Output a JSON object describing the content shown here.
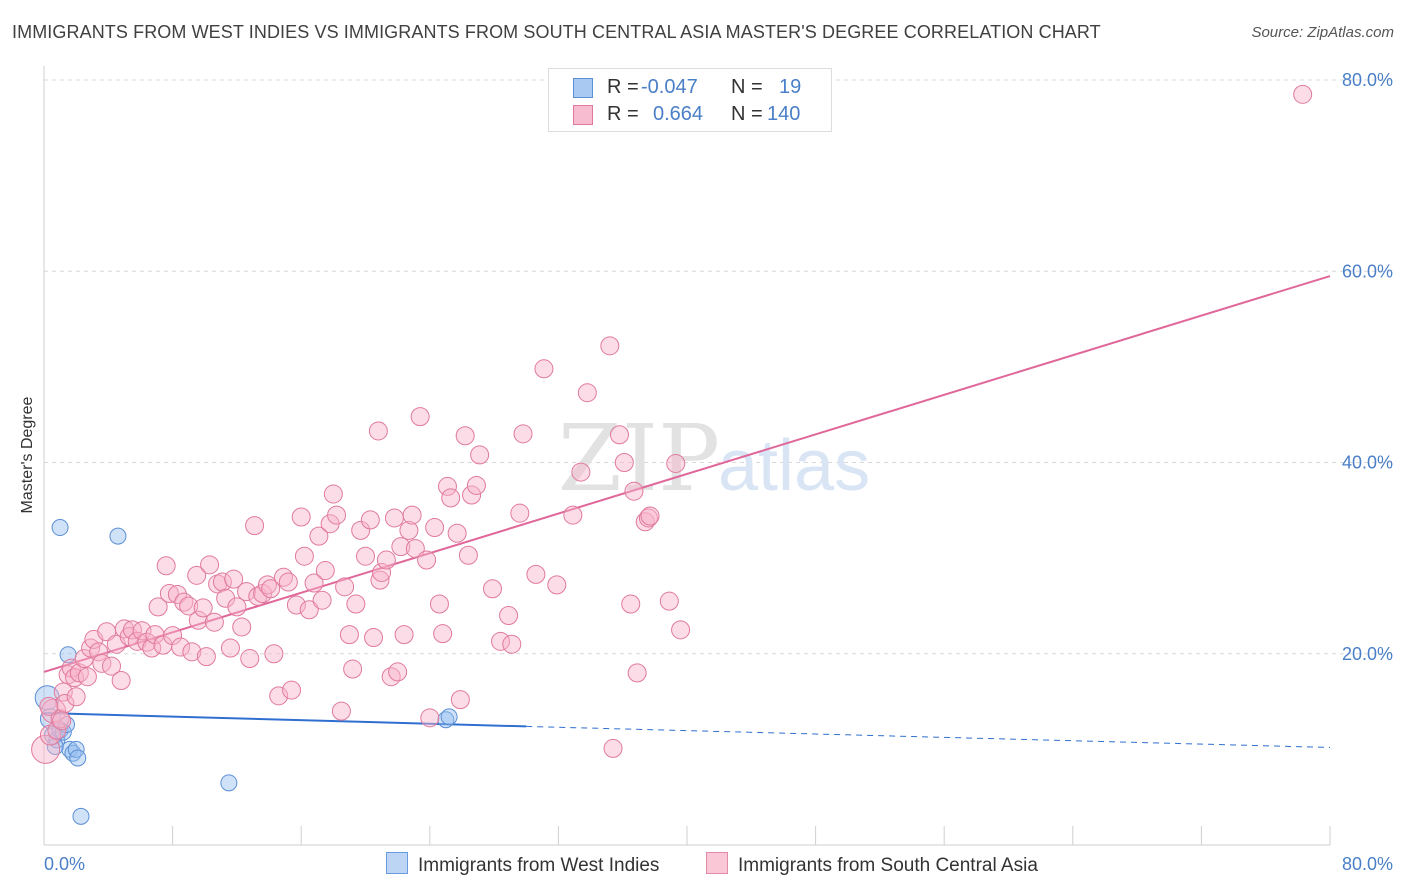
{
  "title": "IMMIGRANTS FROM WEST INDIES VS IMMIGRANTS FROM SOUTH CENTRAL ASIA MASTER'S DEGREE CORRELATION CHART",
  "source": "Source: ZipAtlas.com",
  "watermark": {
    "zip": "ZIP",
    "atlas": "atlas"
  },
  "legend": {
    "r_label": "R =",
    "n_label": "N =",
    "rows": [
      {
        "r": "-0.047",
        "n": "19",
        "color": "#a9c8f2",
        "border": "#5b8fd6"
      },
      {
        "r": "0.664",
        "n": "140",
        "color": "#f8bcd0",
        "border": "#e07a9c"
      }
    ]
  },
  "bottom_legend": [
    {
      "label": "Immigrants from West Indies",
      "color": "#bcd5f5",
      "border": "#6a9ae0"
    },
    {
      "label": "Immigrants from South Central Asia",
      "color": "#f9c7d6",
      "border": "#e48aa8"
    }
  ],
  "chart_data": {
    "type": "scatter",
    "title": "IMMIGRANTS FROM WEST INDIES VS IMMIGRANTS FROM SOUTH CENTRAL ASIA MASTER'S DEGREE CORRELATION CHART",
    "xlabel": "",
    "ylabel": "Master's Degree",
    "xlim": [
      0,
      80
    ],
    "ylim": [
      0,
      80
    ],
    "x_tick_labels": [
      "0.0%",
      "80.0%"
    ],
    "y_ticks": [
      20,
      40,
      60,
      80
    ],
    "y_tick_labels": [
      "20.0%",
      "40.0%",
      "60.0%",
      "80.0%"
    ],
    "grid": true,
    "series": [
      {
        "name": "Immigrants from West Indies",
        "color": "#5b8fd6",
        "fill": "rgba(150,190,240,0.45)",
        "trend": {
          "x0": 0,
          "y0": 13.8,
          "x1": 30,
          "y1": 12.4,
          "dashed_to_x": 80,
          "dashed_to_y": 10.2,
          "color": "#2f6fcf"
        },
        "points": [
          [
            0.2,
            15.4,
            12
          ],
          [
            0.4,
            13.2,
            10
          ],
          [
            0.6,
            11.5,
            9
          ],
          [
            0.8,
            11.0,
            8
          ],
          [
            1.0,
            12.0,
            8
          ],
          [
            1.0,
            33.2,
            8
          ],
          [
            1.2,
            11.8,
            8
          ],
          [
            1.4,
            12.6,
            8
          ],
          [
            1.5,
            19.9,
            8
          ],
          [
            1.6,
            10.0,
            8
          ],
          [
            1.8,
            9.6,
            8
          ],
          [
            2.0,
            10.0,
            8
          ],
          [
            2.1,
            9.1,
            8
          ],
          [
            2.3,
            3.0,
            8
          ],
          [
            4.6,
            32.3,
            8
          ],
          [
            11.5,
            6.5,
            8
          ],
          [
            25.0,
            13.1,
            8
          ],
          [
            25.2,
            13.4,
            8
          ],
          [
            0.7,
            10.3,
            8
          ]
        ]
      },
      {
        "name": "Immigrants from South Central Asia",
        "color": "#e07a9c",
        "fill": "rgba(248,180,202,0.45)",
        "trend": {
          "x0": 0,
          "y0": 18.1,
          "x1": 80,
          "y1": 59.5,
          "color": "#e0679a"
        },
        "points": [
          [
            0.1,
            10.0,
            14
          ],
          [
            0.4,
            11.5,
            10
          ],
          [
            0.6,
            14.0,
            12
          ],
          [
            0.8,
            12.0,
            9
          ],
          [
            1.0,
            13.2,
            9
          ],
          [
            1.2,
            16.0,
            9
          ],
          [
            1.3,
            14.8,
            9
          ],
          [
            1.5,
            17.8,
            9
          ],
          [
            1.7,
            18.5,
            9
          ],
          [
            1.9,
            17.5,
            9
          ],
          [
            2.0,
            15.5,
            9
          ],
          [
            2.2,
            18.0,
            9
          ],
          [
            2.5,
            19.5,
            9
          ],
          [
            2.7,
            17.6,
            9
          ],
          [
            2.9,
            20.6,
            9
          ],
          [
            3.1,
            21.5,
            9
          ],
          [
            3.4,
            20.2,
            9
          ],
          [
            3.6,
            19.0,
            9
          ],
          [
            3.9,
            22.3,
            9
          ],
          [
            4.2,
            18.7,
            9
          ],
          [
            4.5,
            21.0,
            9
          ],
          [
            4.8,
            17.2,
            9
          ],
          [
            5.0,
            22.6,
            9
          ],
          [
            5.3,
            21.8,
            9
          ],
          [
            5.5,
            22.5,
            9
          ],
          [
            5.8,
            21.3,
            9
          ],
          [
            6.1,
            22.4,
            9
          ],
          [
            6.4,
            21.2,
            9
          ],
          [
            6.7,
            20.6,
            9
          ],
          [
            6.9,
            22.0,
            9
          ],
          [
            7.1,
            24.9,
            9
          ],
          [
            7.4,
            20.9,
            9
          ],
          [
            7.6,
            29.2,
            9
          ],
          [
            7.8,
            26.3,
            9
          ],
          [
            8.0,
            21.9,
            9
          ],
          [
            8.3,
            26.2,
            9
          ],
          [
            8.5,
            20.7,
            9
          ],
          [
            8.7,
            25.4,
            9
          ],
          [
            9.0,
            25.0,
            9
          ],
          [
            9.2,
            20.2,
            9
          ],
          [
            9.5,
            28.2,
            9
          ],
          [
            9.6,
            23.5,
            9
          ],
          [
            9.9,
            24.8,
            9
          ],
          [
            10.1,
            19.7,
            9
          ],
          [
            10.3,
            29.3,
            9
          ],
          [
            10.6,
            23.3,
            9
          ],
          [
            10.8,
            27.3,
            9
          ],
          [
            11.1,
            27.5,
            9
          ],
          [
            11.3,
            25.8,
            9
          ],
          [
            11.6,
            20.6,
            9
          ],
          [
            11.8,
            27.8,
            9
          ],
          [
            12.0,
            24.9,
            9
          ],
          [
            12.3,
            22.8,
            9
          ],
          [
            12.6,
            26.5,
            9
          ],
          [
            12.8,
            19.5,
            9
          ],
          [
            13.1,
            33.4,
            9
          ],
          [
            13.3,
            26.0,
            9
          ],
          [
            13.6,
            26.3,
            9
          ],
          [
            13.9,
            27.2,
            9
          ],
          [
            14.1,
            26.8,
            9
          ],
          [
            14.3,
            20.0,
            9
          ],
          [
            14.6,
            15.6,
            9
          ],
          [
            14.9,
            28.0,
            9
          ],
          [
            15.2,
            27.5,
            9
          ],
          [
            15.4,
            16.2,
            9
          ],
          [
            15.7,
            25.1,
            9
          ],
          [
            16.0,
            34.3,
            9
          ],
          [
            16.2,
            30.2,
            9
          ],
          [
            16.5,
            24.6,
            9
          ],
          [
            16.8,
            27.4,
            9
          ],
          [
            17.1,
            32.3,
            9
          ],
          [
            17.3,
            25.6,
            9
          ],
          [
            17.5,
            28.7,
            9
          ],
          [
            17.8,
            33.6,
            9
          ],
          [
            18.0,
            36.7,
            9
          ],
          [
            18.2,
            34.5,
            9
          ],
          [
            18.5,
            14.0,
            9
          ],
          [
            18.7,
            27.0,
            9
          ],
          [
            19.0,
            22.0,
            9
          ],
          [
            19.2,
            18.4,
            9
          ],
          [
            19.4,
            25.2,
            9
          ],
          [
            19.7,
            32.9,
            9
          ],
          [
            20.0,
            30.2,
            9
          ],
          [
            20.3,
            34.0,
            9
          ],
          [
            20.5,
            21.7,
            9
          ],
          [
            20.8,
            43.3,
            9
          ],
          [
            20.9,
            27.7,
            9
          ],
          [
            21.0,
            28.5,
            9
          ],
          [
            21.3,
            29.8,
            9
          ],
          [
            21.6,
            17.6,
            9
          ],
          [
            21.8,
            34.2,
            9
          ],
          [
            22.0,
            18.1,
            9
          ],
          [
            22.2,
            31.2,
            9
          ],
          [
            22.4,
            22.0,
            9
          ],
          [
            22.7,
            32.9,
            9
          ],
          [
            22.9,
            34.5,
            9
          ],
          [
            23.1,
            31.0,
            9
          ],
          [
            23.4,
            44.8,
            9
          ],
          [
            23.8,
            29.8,
            9
          ],
          [
            24.0,
            13.3,
            9
          ],
          [
            24.3,
            33.2,
            9
          ],
          [
            24.6,
            25.2,
            9
          ],
          [
            24.8,
            22.1,
            9
          ],
          [
            25.1,
            37.5,
            9
          ],
          [
            25.3,
            36.3,
            9
          ],
          [
            25.7,
            32.6,
            9
          ],
          [
            25.9,
            15.2,
            9
          ],
          [
            26.2,
            42.8,
            9
          ],
          [
            26.4,
            30.3,
            9
          ],
          [
            26.6,
            36.6,
            9
          ],
          [
            26.9,
            37.6,
            9
          ],
          [
            27.1,
            40.8,
            9
          ],
          [
            27.9,
            26.8,
            9
          ],
          [
            28.4,
            21.3,
            9
          ],
          [
            28.9,
            24.0,
            9
          ],
          [
            29.1,
            21.0,
            9
          ],
          [
            29.6,
            34.7,
            9
          ],
          [
            29.8,
            43.0,
            9
          ],
          [
            30.6,
            28.3,
            9
          ],
          [
            31.1,
            49.8,
            9
          ],
          [
            31.9,
            27.2,
            9
          ],
          [
            32.9,
            34.5,
            9
          ],
          [
            33.4,
            39.0,
            9
          ],
          [
            33.8,
            47.3,
            9
          ],
          [
            35.2,
            52.2,
            9
          ],
          [
            35.4,
            10.1,
            9
          ],
          [
            35.8,
            42.9,
            9
          ],
          [
            36.1,
            40.0,
            9
          ],
          [
            36.5,
            25.2,
            9
          ],
          [
            36.7,
            37.0,
            9
          ],
          [
            36.9,
            18.0,
            9
          ],
          [
            37.4,
            33.8,
            9
          ],
          [
            37.6,
            34.2,
            9
          ],
          [
            37.7,
            34.4,
            9
          ],
          [
            38.9,
            25.5,
            9
          ],
          [
            39.3,
            39.9,
            9
          ],
          [
            39.6,
            22.5,
            9
          ],
          [
            78.3,
            78.5,
            9
          ],
          [
            0.3,
            14.5,
            9
          ],
          [
            1.1,
            13.0,
            9
          ]
        ]
      }
    ]
  }
}
